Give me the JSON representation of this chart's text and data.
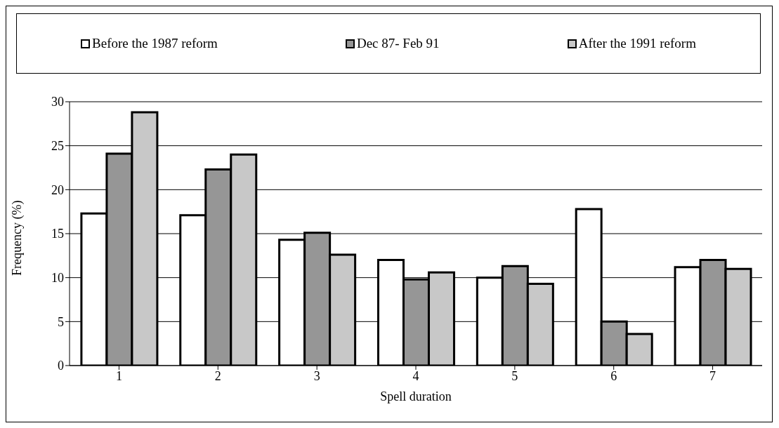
{
  "chart_data": {
    "type": "bar",
    "xlabel": "Spell duration",
    "ylabel": "Frequency (%)",
    "categories": [
      "1",
      "2",
      "3",
      "4",
      "5",
      "6",
      "7"
    ],
    "series": [
      {
        "name": "Before the 1987 reform",
        "color": "#ffffff",
        "values": [
          17.3,
          17.1,
          14.3,
          12.0,
          10.0,
          17.8,
          11.2
        ]
      },
      {
        "name": "Dec 87- Feb 91",
        "color": "#969696",
        "values": [
          24.1,
          22.3,
          15.1,
          9.8,
          11.3,
          5.0,
          12.0
        ]
      },
      {
        "name": "After the 1991 reform",
        "color": "#c8c8c8",
        "values": [
          28.8,
          24.0,
          12.6,
          10.6,
          9.3,
          3.6,
          11.0
        ]
      }
    ],
    "ylim": [
      0,
      30
    ],
    "yticks": [
      0,
      5,
      10,
      15,
      20,
      25,
      30
    ],
    "grid": "y",
    "legend": "top"
  }
}
